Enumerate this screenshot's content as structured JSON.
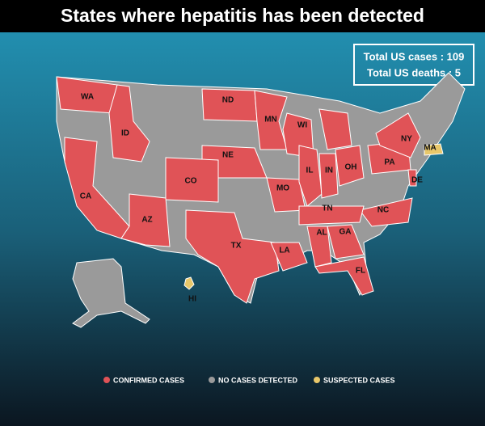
{
  "title": "States where hepatitis has been detected",
  "stats": [
    "Total US cases : 109",
    "Total US deaths : 5"
  ],
  "states": [
    {
      "label": "WA",
      "color": "#e05357"
    },
    {
      "label": "ID",
      "color": "#e05357"
    },
    {
      "label": "ND",
      "color": "#e05357"
    },
    {
      "label": "MN",
      "color": "#e05357"
    },
    {
      "label": "WI",
      "color": "#e05357"
    },
    {
      "label": "NE",
      "color": "#e05357"
    },
    {
      "label": "CO",
      "color": "#e05357"
    },
    {
      "label": "CA",
      "color": "#e05357"
    },
    {
      "label": "AZ",
      "color": "#e05357"
    },
    {
      "label": "TX",
      "color": "#e05357"
    },
    {
      "label": "LA",
      "color": "#e05357"
    },
    {
      "label": "MO",
      "color": "#e05357"
    },
    {
      "label": "IL",
      "color": "#e05357"
    },
    {
      "label": "IN",
      "color": "#e05357"
    },
    {
      "label": "OH",
      "color": "#e05357"
    },
    {
      "label": "PA",
      "color": "#e05357"
    },
    {
      "label": "NY",
      "color": "#e05357"
    },
    {
      "label": "DE",
      "color": "#e05357"
    },
    {
      "label": "NC",
      "color": "#e05357"
    },
    {
      "label": "TN",
      "color": "#e05357"
    },
    {
      "label": "AL",
      "color": "#e05357"
    },
    {
      "label": "GA",
      "color": "#e05357"
    },
    {
      "label": "FL",
      "color": "#e05357"
    },
    {
      "label": "MA",
      "color": "#e8c76a"
    },
    {
      "label": "HI",
      "color": "#e8c76a"
    }
  ],
  "legend": [
    {
      "label": "CONFIRMED CASES",
      "color": "#e05357"
    },
    {
      "label": "NO CASES DETECTED",
      "color": "#9a9a9a"
    },
    {
      "label": "SUSPECTED CASES",
      "color": "#e8c76a"
    }
  ]
}
